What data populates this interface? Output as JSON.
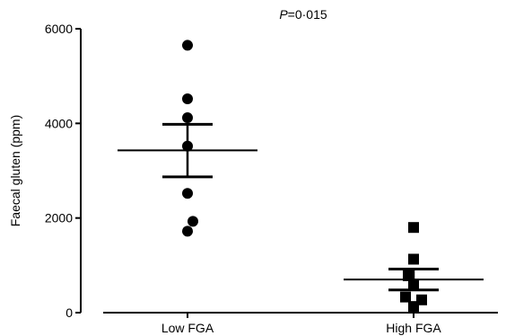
{
  "chart_data": {
    "type": "scatter",
    "title": "",
    "xlabel": "",
    "ylabel": "Faecal gluten (ppm)",
    "ylim": [
      0,
      6000
    ],
    "yticks": [
      0,
      2000,
      4000,
      6000
    ],
    "categories": [
      "Low FGA",
      "High FGA"
    ],
    "annotation": {
      "prefix": "P",
      "text": "=0·015"
    },
    "grid": false,
    "series": [
      {
        "category": "Low FGA",
        "marker": "circle",
        "points": [
          {
            "offset": 0.0,
            "y": 5650
          },
          {
            "offset": 0.0,
            "y": 4520
          },
          {
            "offset": 0.0,
            "y": 4120
          },
          {
            "offset": 0.0,
            "y": 3520
          },
          {
            "offset": 0.0,
            "y": 2520
          },
          {
            "offset": 0.2,
            "y": 1930
          },
          {
            "offset": 0.0,
            "y": 1720
          }
        ],
        "mean": 3430,
        "sem_upper": 3980,
        "sem_lower": 2870
      },
      {
        "category": "High FGA",
        "marker": "square",
        "points": [
          {
            "offset": 0.0,
            "y": 1800
          },
          {
            "offset": 0.0,
            "y": 1130
          },
          {
            "offset": 0.0,
            "y": 580
          },
          {
            "offset": 0.0,
            "y": 130
          },
          {
            "offset": -0.2,
            "y": 780
          },
          {
            "offset": -0.3,
            "y": 330
          },
          {
            "offset": 0.3,
            "y": 270
          }
        ],
        "mean": 700,
        "sem_upper": 920,
        "sem_lower": 480
      }
    ],
    "colors": {
      "marks": "#000000",
      "background": "#ffffff"
    }
  }
}
